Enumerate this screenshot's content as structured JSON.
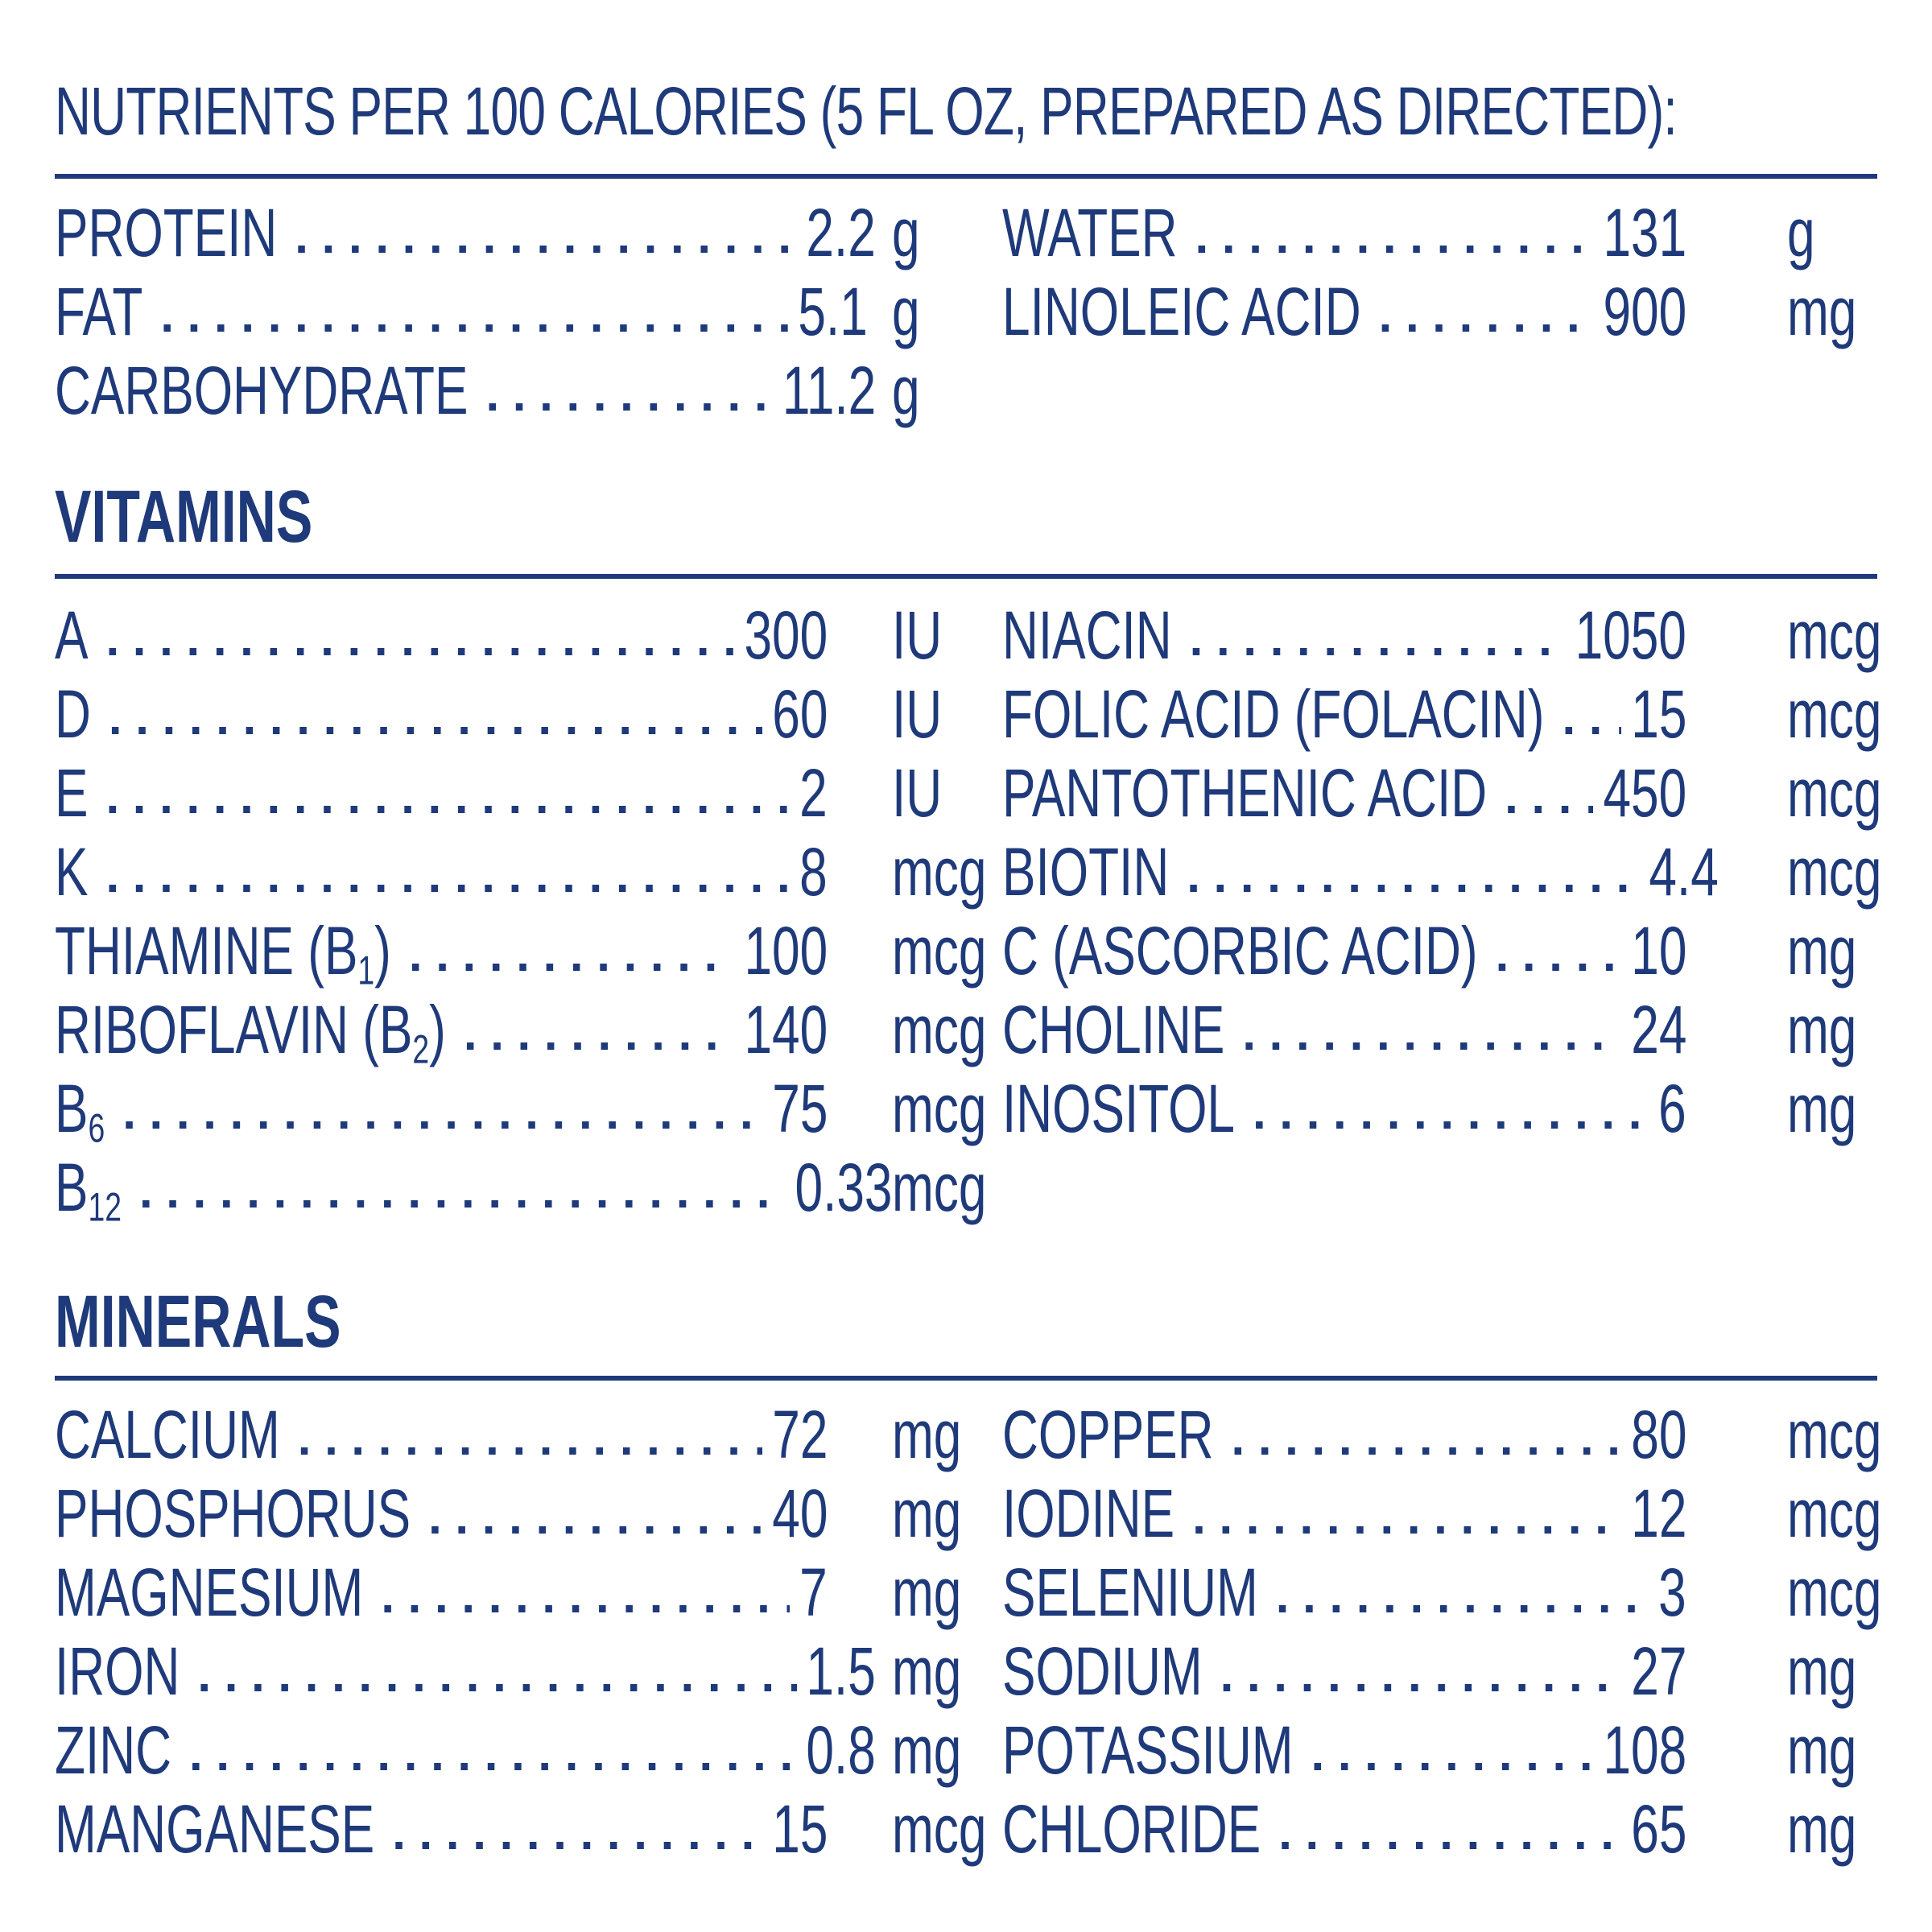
{
  "title": "NUTRIENTS PER 100 CALORIES (5 FL OZ, PREPARED AS DIRECTED):",
  "macros": {
    "left": [
      {
        "label": "PROTEIN",
        "value": "2.2",
        "unit": "g"
      },
      {
        "label": "FAT",
        "value": "5.1",
        "unit": "g"
      },
      {
        "label": "CARBOHYDRATE",
        "value": "11.2",
        "unit": "g"
      }
    ],
    "right": [
      {
        "label": "WATER",
        "value": "131",
        "unit": "g"
      },
      {
        "label": "LINOLEIC ACID",
        "value": "900",
        "unit": "mg"
      }
    ]
  },
  "vitamins": {
    "heading": "VITAMINS",
    "left": [
      {
        "label": "A",
        "value": "300",
        "unit": "IU"
      },
      {
        "label": "D",
        "value": "60",
        "unit": "IU"
      },
      {
        "label": "E",
        "value": "2",
        "unit": "IU"
      },
      {
        "label": "K",
        "value": "8",
        "unit": "mcg"
      },
      {
        "label": "THIAMINE (B",
        "sub": "1",
        "label_after": ")",
        "value": "100",
        "unit": "mcg"
      },
      {
        "label": "RIBOFLAVIN (B",
        "sub": "2",
        "label_after": ")",
        "value": "140",
        "unit": "mcg"
      },
      {
        "label": "B",
        "sub": "6",
        "value": "75",
        "unit": "mcg"
      },
      {
        "label": "B",
        "sub": "12",
        "value": "0.33",
        "unit": "mcg"
      }
    ],
    "right": [
      {
        "label": "NIACIN",
        "value": "1050",
        "unit": "mcg"
      },
      {
        "label": "FOLIC ACID (FOLACIN)",
        "value": "15",
        "unit": "mcg"
      },
      {
        "label": "PANTOTHENIC ACID",
        "value": "450",
        "unit": "mcg"
      },
      {
        "label": "BIOTIN",
        "value": "4.4",
        "unit": "mcg"
      },
      {
        "label": "C (ASCORBIC ACID)",
        "value": "10",
        "unit": "mg"
      },
      {
        "label": "CHOLINE",
        "value": "24",
        "unit": "mg"
      },
      {
        "label": "INOSITOL",
        "value": "6",
        "unit": "mg"
      }
    ]
  },
  "minerals": {
    "heading": "MINERALS",
    "left": [
      {
        "label": "CALCIUM",
        "value": "72",
        "unit": "mg"
      },
      {
        "label": "PHOSPHORUS",
        "value": "40",
        "unit": "mg"
      },
      {
        "label": "MAGNESIUM",
        "value": "7",
        "unit": "mg"
      },
      {
        "label": "IRON",
        "value": "1.5",
        "unit": "mg"
      },
      {
        "label": "ZINC",
        "value": "0.8",
        "unit": "mg"
      },
      {
        "label": "MANGANESE",
        "value": "15",
        "unit": "mcg"
      }
    ],
    "right": [
      {
        "label": "COPPER",
        "value": "80",
        "unit": "mcg"
      },
      {
        "label": "IODINE",
        "value": "12",
        "unit": "mcg"
      },
      {
        "label": "SELENIUM",
        "value": "3",
        "unit": "mcg"
      },
      {
        "label": "SODIUM",
        "value": "27",
        "unit": "mg"
      },
      {
        "label": "POTASSIUM",
        "value": "108",
        "unit": "mg"
      },
      {
        "label": "CHLORIDE",
        "value": "65",
        "unit": "mg"
      }
    ]
  },
  "colors": {
    "ink": "#1f3a7a",
    "background": "#ffffff"
  }
}
